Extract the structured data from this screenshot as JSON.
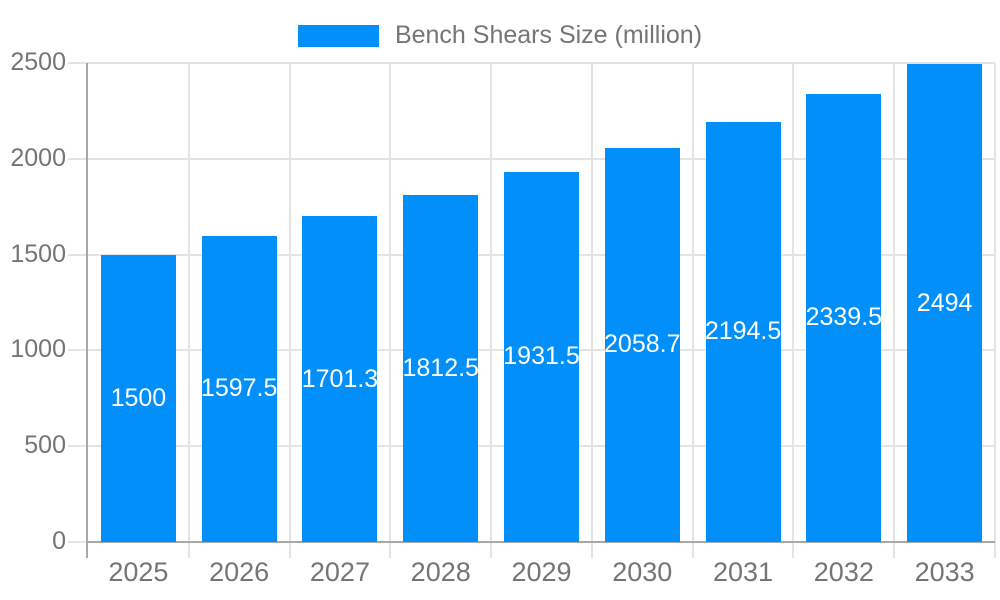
{
  "chart_data": {
    "type": "bar",
    "title": "Bench Shears Size (million)",
    "legend_label": "Bench Shears Size (million)",
    "legend_position": "top",
    "categories": [
      "2025",
      "2026",
      "2027",
      "2028",
      "2029",
      "2030",
      "2031",
      "2032",
      "2033"
    ],
    "series": [
      {
        "name": "Bench Shears Size (million)",
        "values": [
          1500,
          1597.5,
          1701.3,
          1812.5,
          1931.5,
          2058.7,
          2194.5,
          2339.5,
          2494
        ]
      }
    ],
    "value_labels": [
      "1500",
      "1597.5",
      "1701.3",
      "1812.5",
      "1931.5",
      "2058.7",
      "2194.5",
      "2339.5",
      "2494"
    ],
    "xlabel": "",
    "ylabel": "",
    "ylim": [
      0,
      2500
    ],
    "y_tick_interval": 500,
    "y_tick_labels": [
      "0",
      "500",
      "1000",
      "1500",
      "2000",
      "2500"
    ],
    "grid": true,
    "colors": {
      "bar": "#008FFB",
      "text": "#757575",
      "grid": "#e4e4e4",
      "axis": "#a8a8a8",
      "value_label": "#ffffff",
      "background": "#ffffff"
    }
  }
}
